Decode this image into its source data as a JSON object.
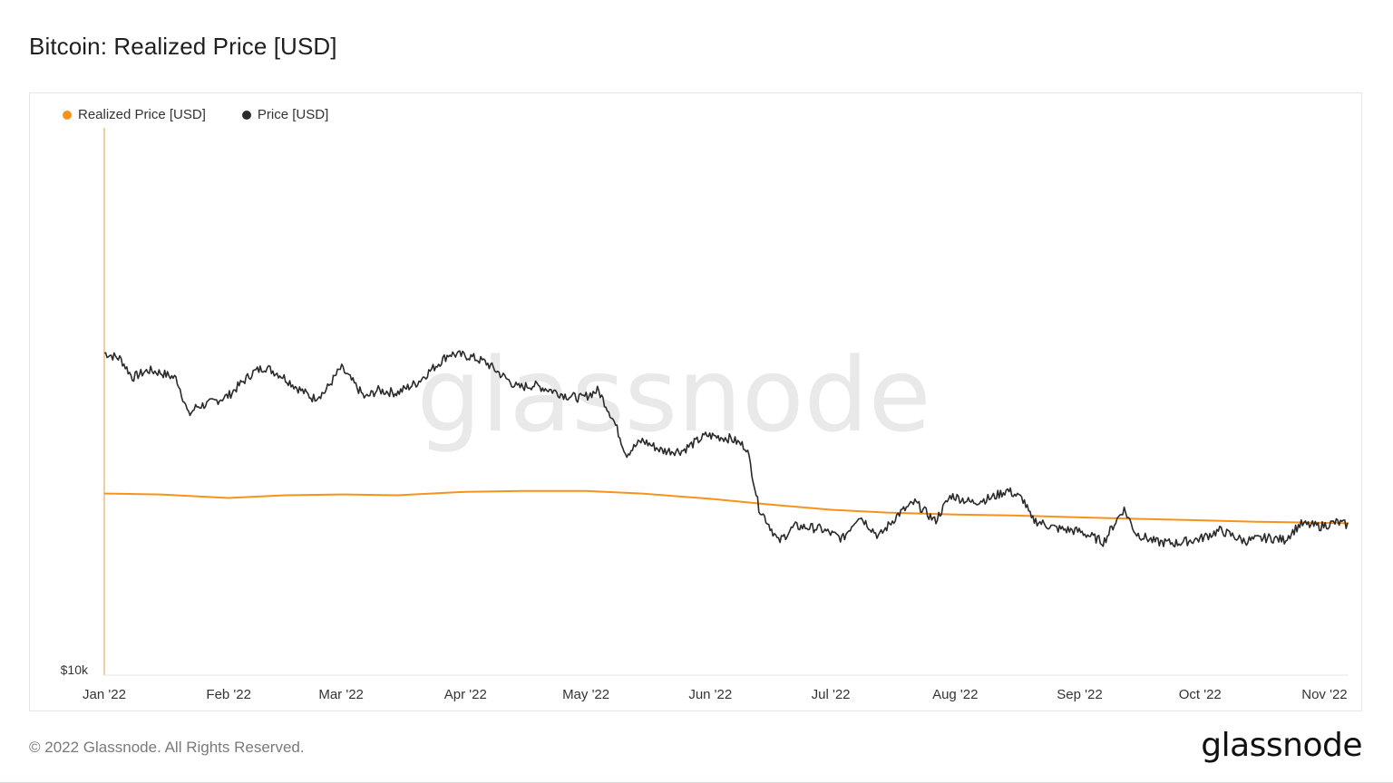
{
  "page": {
    "title": "Bitcoin: Realized Price [USD]",
    "copyright": "© 2022 Glassnode. All Rights Reserved.",
    "brand": "glassnode",
    "watermark": "glassnode"
  },
  "colors": {
    "realized": "#f7931a",
    "price": "#2a2a2a",
    "axis": "#f3cf9e",
    "watermark": "#e9e9e9"
  },
  "chart_data": {
    "type": "line",
    "title": "Bitcoin: Realized Price [USD]",
    "y_scale": "log",
    "y_tick_labels": [
      {
        "label": "$10k",
        "value": 10000
      }
    ],
    "ylim": [
      10000,
      140000
    ],
    "xlim": [
      "2022-01-01",
      "2022-11-07"
    ],
    "x_tick_labels": [
      {
        "label": "Jan '22",
        "date": "2022-01-01"
      },
      {
        "label": "Feb '22",
        "date": "2022-02-01"
      },
      {
        "label": "Mar '22",
        "date": "2022-03-01"
      },
      {
        "label": "Apr '22",
        "date": "2022-04-01"
      },
      {
        "label": "May '22",
        "date": "2022-05-01"
      },
      {
        "label": "Jun '22",
        "date": "2022-06-01"
      },
      {
        "label": "Jul '22",
        "date": "2022-07-01"
      },
      {
        "label": "Aug '22",
        "date": "2022-08-01"
      },
      {
        "label": "Sep '22",
        "date": "2022-09-01"
      },
      {
        "label": "Oct '22",
        "date": "2022-10-01"
      },
      {
        "label": "Nov '22",
        "date": "2022-11-01"
      }
    ],
    "grid": false,
    "legend_position": "top-left",
    "series": [
      {
        "name": "Realized Price [USD]",
        "color": "#f7931a",
        "points": [
          [
            "2022-01-01",
            24000
          ],
          [
            "2022-01-15",
            23900
          ],
          [
            "2022-02-01",
            23500
          ],
          [
            "2022-02-15",
            23800
          ],
          [
            "2022-03-01",
            23900
          ],
          [
            "2022-03-15",
            23800
          ],
          [
            "2022-04-01",
            24200
          ],
          [
            "2022-04-15",
            24300
          ],
          [
            "2022-05-01",
            24300
          ],
          [
            "2022-05-15",
            24000
          ],
          [
            "2022-06-01",
            23400
          ],
          [
            "2022-06-15",
            22800
          ],
          [
            "2022-07-01",
            22200
          ],
          [
            "2022-07-15",
            21900
          ],
          [
            "2022-08-01",
            21700
          ],
          [
            "2022-08-15",
            21600
          ],
          [
            "2022-09-01",
            21400
          ],
          [
            "2022-09-15",
            21250
          ],
          [
            "2022-10-01",
            21100
          ],
          [
            "2022-10-15",
            20950
          ],
          [
            "2022-11-07",
            20800
          ]
        ]
      },
      {
        "name": "Price [USD]",
        "color": "#2a2a2a",
        "points": [
          [
            "2022-01-01",
            47300
          ],
          [
            "2022-01-05",
            46000
          ],
          [
            "2022-01-08",
            42000
          ],
          [
            "2022-01-12",
            43500
          ],
          [
            "2022-01-15",
            43000
          ],
          [
            "2022-01-19",
            41800
          ],
          [
            "2022-01-22",
            35000
          ],
          [
            "2022-01-24",
            36500
          ],
          [
            "2022-01-27",
            37000
          ],
          [
            "2022-02-01",
            38500
          ],
          [
            "2022-02-07",
            43000
          ],
          [
            "2022-02-10",
            44200
          ],
          [
            "2022-02-14",
            42500
          ],
          [
            "2022-02-18",
            40000
          ],
          [
            "2022-02-22",
            38000
          ],
          [
            "2022-02-25",
            39200
          ],
          [
            "2022-03-01",
            44000
          ],
          [
            "2022-03-04",
            41000
          ],
          [
            "2022-03-07",
            38000
          ],
          [
            "2022-03-10",
            39500
          ],
          [
            "2022-03-15",
            39000
          ],
          [
            "2022-03-20",
            41000
          ],
          [
            "2022-03-24",
            44000
          ],
          [
            "2022-03-28",
            47100
          ],
          [
            "2022-04-02",
            46500
          ],
          [
            "2022-04-06",
            45200
          ],
          [
            "2022-04-10",
            42500
          ],
          [
            "2022-04-14",
            40000
          ],
          [
            "2022-04-18",
            40500
          ],
          [
            "2022-04-22",
            39600
          ],
          [
            "2022-04-26",
            38500
          ],
          [
            "2022-04-30",
            38000
          ],
          [
            "2022-05-04",
            39500
          ],
          [
            "2022-05-08",
            34000
          ],
          [
            "2022-05-11",
            29000
          ],
          [
            "2022-05-15",
            31000
          ],
          [
            "2022-05-20",
            29500
          ],
          [
            "2022-05-25",
            29500
          ],
          [
            "2022-05-31",
            31800
          ],
          [
            "2022-06-06",
            31300
          ],
          [
            "2022-06-10",
            30000
          ],
          [
            "2022-06-13",
            22500
          ],
          [
            "2022-06-18",
            19000
          ],
          [
            "2022-06-22",
            20500
          ],
          [
            "2022-06-28",
            20300
          ],
          [
            "2022-07-04",
            19300
          ],
          [
            "2022-07-08",
            21600
          ],
          [
            "2022-07-13",
            19500
          ],
          [
            "2022-07-18",
            21800
          ],
          [
            "2022-07-22",
            23000
          ],
          [
            "2022-07-27",
            21000
          ],
          [
            "2022-07-31",
            23800
          ],
          [
            "2022-08-05",
            23000
          ],
          [
            "2022-08-10",
            23500
          ],
          [
            "2022-08-14",
            24400
          ],
          [
            "2022-08-18",
            23300
          ],
          [
            "2022-08-20",
            21200
          ],
          [
            "2022-08-26",
            20300
          ],
          [
            "2022-09-01",
            20000
          ],
          [
            "2022-09-07",
            19000
          ],
          [
            "2022-09-12",
            22300
          ],
          [
            "2022-09-15",
            19800
          ],
          [
            "2022-09-20",
            19000
          ],
          [
            "2022-09-25",
            18900
          ],
          [
            "2022-10-01",
            19300
          ],
          [
            "2022-10-06",
            20100
          ],
          [
            "2022-10-12",
            19100
          ],
          [
            "2022-10-18",
            19400
          ],
          [
            "2022-10-22",
            19200
          ],
          [
            "2022-10-26",
            20700
          ],
          [
            "2022-10-31",
            20500
          ],
          [
            "2022-11-04",
            20900
          ],
          [
            "2022-11-07",
            20600
          ]
        ]
      }
    ]
  }
}
